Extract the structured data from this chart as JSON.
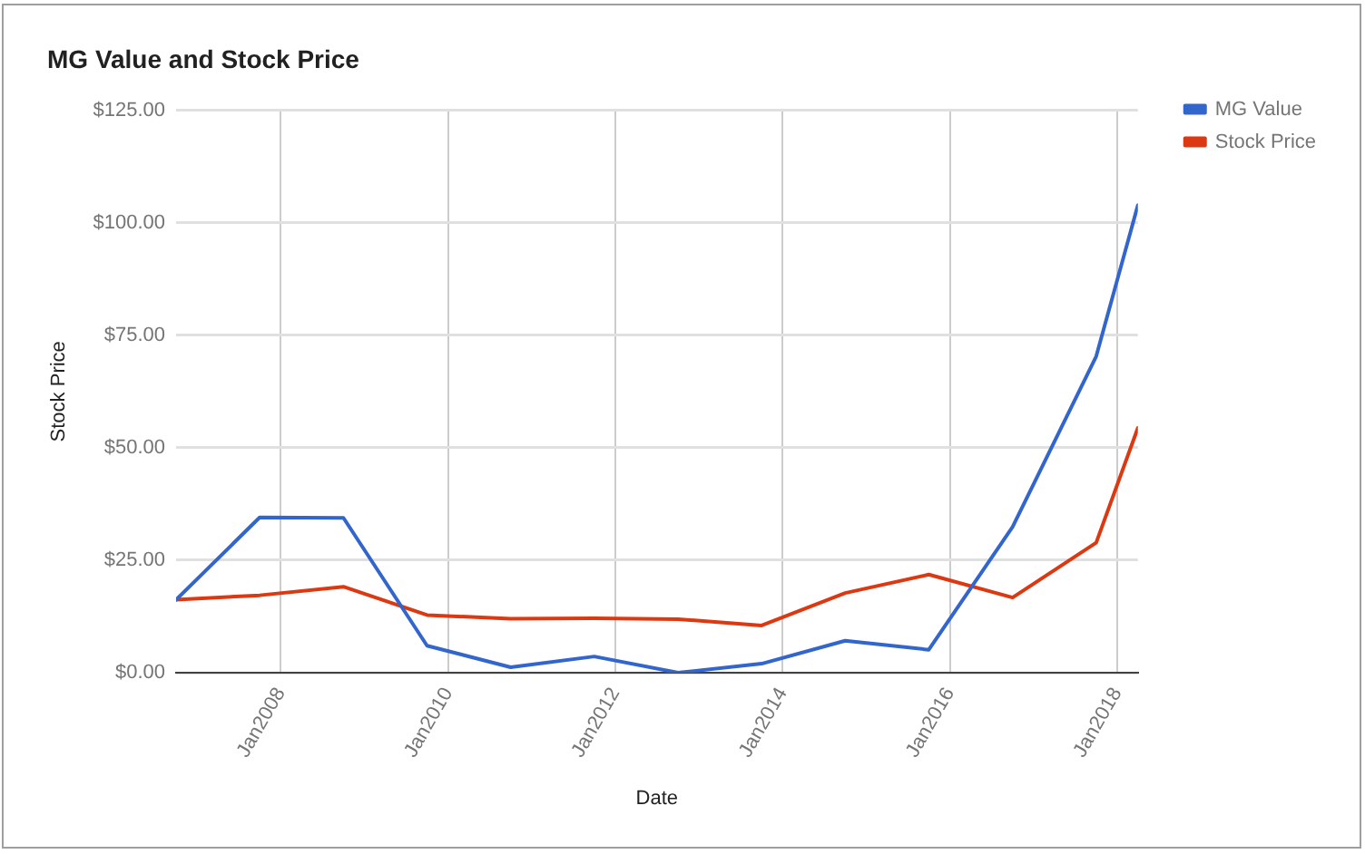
{
  "chart_data": {
    "type": "line",
    "title": "MG Value and Stock Price",
    "xlabel": "Date",
    "ylabel": "Stock Price",
    "x": [
      "2006-10",
      "2007-10",
      "2008-10",
      "2009-10",
      "2010-10",
      "2011-10",
      "2012-10",
      "2013-10",
      "2014-10",
      "2015-10",
      "2016-10",
      "2017-10",
      "2018-04"
    ],
    "series": [
      {
        "name": "MG Value",
        "color": "#3366cc",
        "values": [
          16.2,
          34.5,
          34.4,
          6.0,
          1.2,
          3.6,
          0,
          2.0,
          7.1,
          5.1,
          32.4,
          70.3,
          103.9
        ]
      },
      {
        "name": "Stock Price",
        "color": "#dc3912",
        "values": [
          16.2,
          17.2,
          19.1,
          12.8,
          12.0,
          12.1,
          11.9,
          10.5,
          17.7,
          21.8,
          16.7,
          28.9,
          54.4
        ]
      }
    ],
    "xlim": [
      "2006-10",
      "2018-04"
    ],
    "xticks": [
      {
        "value": "2008-01",
        "label": "Jan2008"
      },
      {
        "value": "2010-01",
        "label": "Jan2010"
      },
      {
        "value": "2012-01",
        "label": "Jan2012"
      },
      {
        "value": "2014-01",
        "label": "Jan2014"
      },
      {
        "value": "2016-01",
        "label": "Jan2016"
      },
      {
        "value": "2018-01",
        "label": "Jan2018"
      }
    ],
    "ylim": [
      0,
      125
    ],
    "yticks": [
      {
        "value": 0,
        "label": "$0.00"
      },
      {
        "value": 25,
        "label": "$25.00"
      },
      {
        "value": 50,
        "label": "$50.00"
      },
      {
        "value": 75,
        "label": "$75.00"
      },
      {
        "value": 100,
        "label": "$100.00"
      },
      {
        "value": 125,
        "label": "$125.00"
      }
    ],
    "grid": true,
    "legend": "top right",
    "marker": "none",
    "line_style": "solid"
  }
}
